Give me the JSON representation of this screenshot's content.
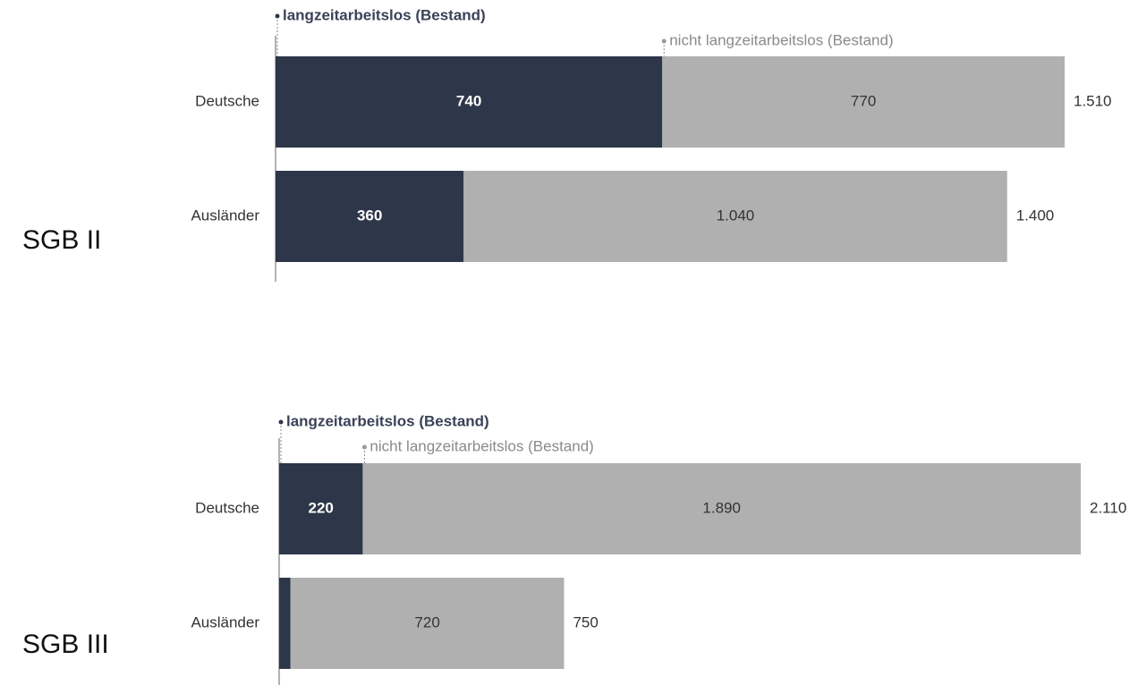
{
  "chart_data": [
    {
      "type": "stacked-barh",
      "group_label": "SGB II",
      "categories": [
        "Deutsche",
        "Ausländer"
      ],
      "series": [
        {
          "name": "langzeitarbeitslos (Bestand)",
          "color": "#2e3649",
          "values": [
            740,
            360
          ]
        },
        {
          "name": "nicht langzeitarbeitslos (Bestand)",
          "color": "#b0b0b0",
          "values": [
            770,
            1040
          ],
          "value_labels": [
            "770",
            "1.040"
          ]
        }
      ],
      "totals": {
        "values": [
          1510,
          1400
        ],
        "value_labels": [
          "1.510",
          "1.400"
        ]
      },
      "xlim": [
        0,
        1534
      ]
    },
    {
      "type": "stacked-barh",
      "group_label": "SGB III",
      "categories": [
        "Deutsche",
        "Ausländer"
      ],
      "series": [
        {
          "name": "langzeitarbeitslos (Bestand)",
          "color": "#2e3649",
          "values": [
            220,
            30
          ],
          "value_labels": [
            "220",
            null
          ]
        },
        {
          "name": "nicht langzeitarbeitslos (Bestand)",
          "color": "#b0b0b0",
          "values": [
            1890,
            720
          ],
          "value_labels": [
            "1.890",
            "720"
          ]
        }
      ],
      "totals": {
        "values": [
          2110,
          750
        ],
        "value_labels": [
          "2.110",
          "750"
        ]
      },
      "xlim": [
        0,
        2110
      ]
    }
  ]
}
